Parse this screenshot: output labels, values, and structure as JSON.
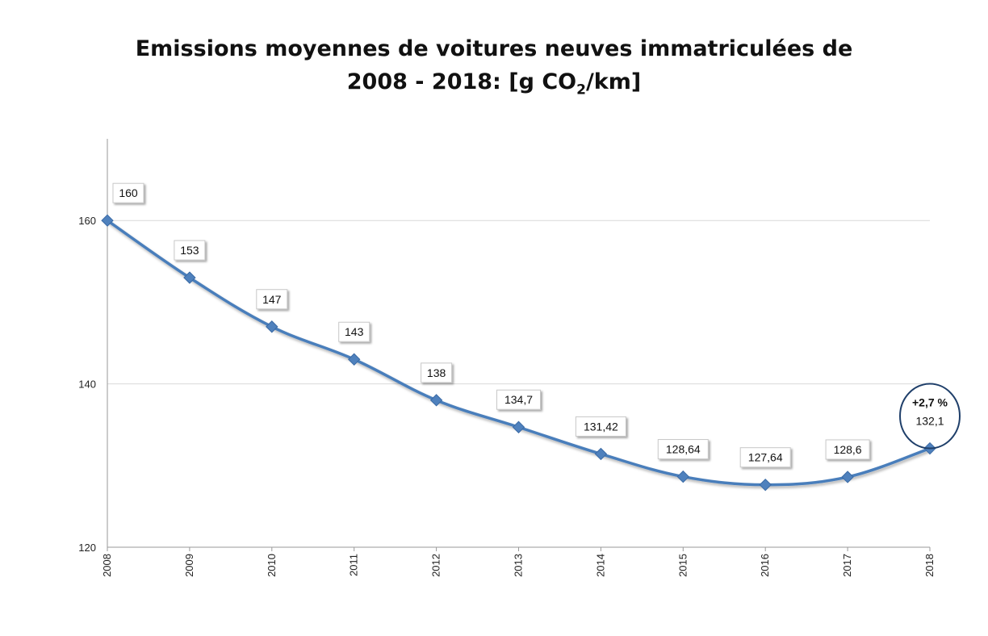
{
  "chart_data": {
    "type": "line",
    "title_line1": "Emissions moyennes de voitures neuves immatriculées de",
    "title_line2_pre": "2008 - 2018: [g CO",
    "title_line2_sub": "2",
    "title_line2_post": "/km]",
    "categories": [
      "2008",
      "2009",
      "2010",
      "2011",
      "2012",
      "2013",
      "2014",
      "2015",
      "2016",
      "2017",
      "2018"
    ],
    "values": [
      160,
      153,
      147,
      143,
      138,
      134.7,
      131.42,
      128.64,
      127.64,
      128.6,
      132.1
    ],
    "data_labels": [
      "160",
      "153",
      "147",
      "143",
      "138",
      "134,7",
      "131,42",
      "128,64",
      "127,64",
      "128,6",
      "132,1"
    ],
    "ylim": [
      120,
      170
    ],
    "yticks": [
      120,
      140,
      160
    ],
    "ytick_labels": [
      "120",
      "140",
      "160"
    ],
    "grid": true,
    "legend": "none",
    "annotation": {
      "text": "+2,7 %",
      "category": "2018"
    },
    "colors": {
      "line": "#4a7ebb",
      "marker": "#4f81bd",
      "grid": "#d9d9d9",
      "axis": "#9a9a9a",
      "annotation_ring": "#1f3f6a"
    }
  }
}
